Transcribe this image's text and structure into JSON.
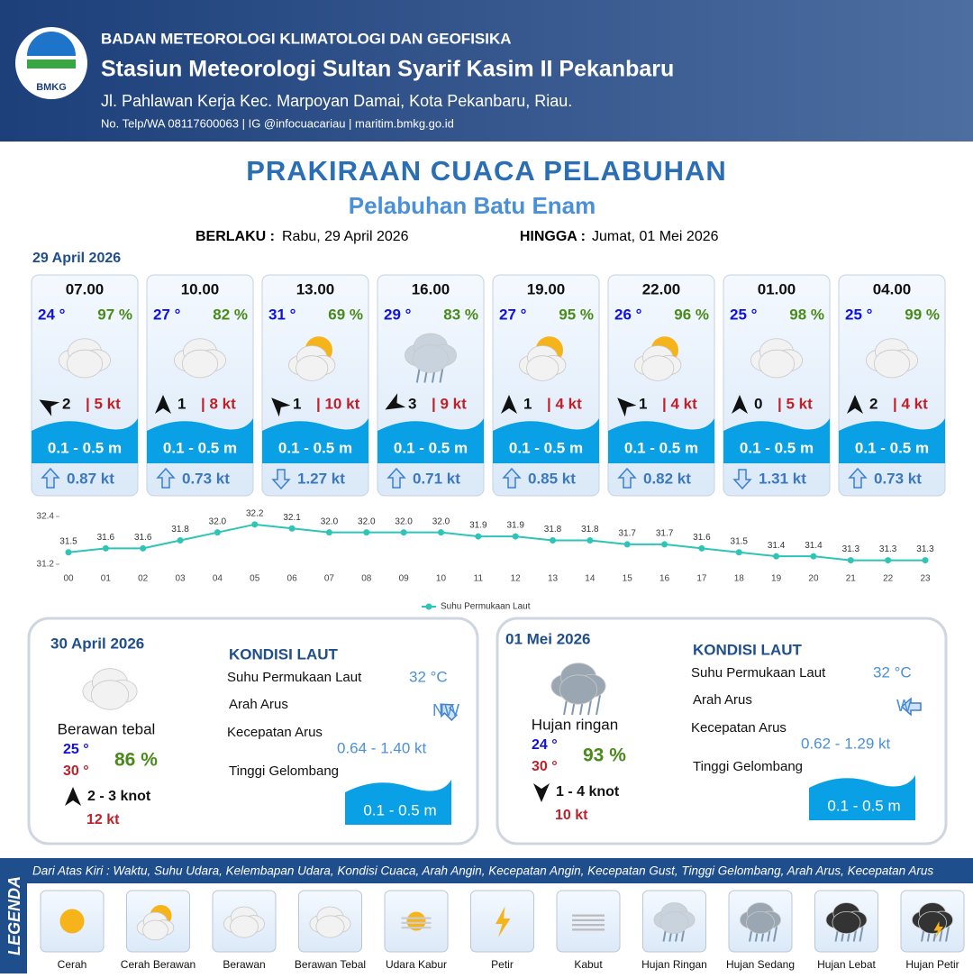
{
  "header": {
    "logo": "BMKG",
    "org": "BADAN METEOROLOGI KLIMATOLOGI DAN GEOFISIKA",
    "station": "Stasiun Meteorologi Sultan Syarif Kasim II Pekanbaru",
    "address": "Jl. Pahlawan Kerja Kec. Marpoyan Damai, Kota Pekanbaru, Riau.",
    "contact": "No. Telp/WA 08117600063 | IG @infocuacariau | maritim.bmkg.go.id"
  },
  "title": "PRAKIRAAN CUACA PELABUHAN",
  "subtitle": "Pelabuhan Batu Enam",
  "validity": {
    "from_label": "BERLAKU :",
    "from": "Rabu, 29 April 2026",
    "to_label": "HINGGA :",
    "to": "Jumat, 01 Mei 2026"
  },
  "day1": {
    "date": "29 April 2026",
    "cards": [
      {
        "time": "07.00",
        "temp": "24 °",
        "humidity": "97 %",
        "wind": "2",
        "gust": "| 5 kt",
        "wave": "0.1 - 0.5 m",
        "current": "0.87 kt"
      },
      {
        "time": "10.00",
        "temp": "27 °",
        "humidity": "82 %",
        "wind": "1",
        "gust": "| 8 kt",
        "wave": "0.1 - 0.5 m",
        "current": "0.73 kt"
      },
      {
        "time": "13.00",
        "temp": "31 °",
        "humidity": "69 %",
        "wind": "1",
        "gust": "| 10 kt",
        "wave": "0.1 - 0.5 m",
        "current": "1.27 kt"
      },
      {
        "time": "16.00",
        "temp": "29 °",
        "humidity": "83 %",
        "wind": "3",
        "gust": "| 9 kt",
        "wave": "0.1 - 0.5 m",
        "current": "0.71 kt"
      },
      {
        "time": "19.00",
        "temp": "27 °",
        "humidity": "95 %",
        "wind": "1",
        "gust": "| 4 kt",
        "wave": "0.1 - 0.5 m",
        "current": "0.85 kt"
      },
      {
        "time": "22.00",
        "temp": "26 °",
        "humidity": "96 %",
        "wind": "1",
        "gust": "| 4 kt",
        "wave": "0.1 - 0.5 m",
        "current": "0.82 kt"
      },
      {
        "time": "01.00",
        "temp": "25 °",
        "humidity": "98 %",
        "wind": "0",
        "gust": "| 5 kt",
        "wave": "0.1 - 0.5 m",
        "current": "1.31 kt"
      },
      {
        "time": "04.00",
        "temp": "25 °",
        "humidity": "99 %",
        "wind": "2",
        "gust": "| 4 kt",
        "wave": "0.1 - 0.5 m",
        "current": "0.73 kt"
      }
    ]
  },
  "chart_data": {
    "type": "line",
    "categories": [
      "00",
      "01",
      "02",
      "03",
      "04",
      "05",
      "06",
      "07",
      "08",
      "09",
      "10",
      "11",
      "12",
      "13",
      "14",
      "15",
      "16",
      "17",
      "18",
      "19",
      "20",
      "21",
      "22",
      "23"
    ],
    "series": [
      {
        "name": "Suhu Permukaan Laut",
        "color": "#2ec4b6",
        "values": [
          31.5,
          31.6,
          31.6,
          31.8,
          32.0,
          32.2,
          32.1,
          32.0,
          32.0,
          32.0,
          32.0,
          31.9,
          31.9,
          31.8,
          31.8,
          31.7,
          31.7,
          31.6,
          31.5,
          31.4,
          31.4,
          31.3,
          31.3,
          31.3
        ],
        "value_labels": [
          "31.5",
          "31.6",
          "31.6",
          "31.8",
          "32.0",
          "32.2",
          "32.1",
          "32.0",
          "32.0",
          "32.0",
          "32.0",
          "31.9",
          "31.9",
          "31.8",
          "31.8",
          "31.7",
          "31.7",
          "31.6",
          "31.5",
          "31.4",
          "31.4",
          "31.3",
          "31.3",
          "31.3"
        ]
      }
    ],
    "ylim": [
      31.2,
      32.4
    ],
    "yticks": [
      31.2,
      32.4
    ],
    "legend": "bottom"
  },
  "days": [
    {
      "date": "30 April 2026",
      "condition": "Berawan tebal",
      "tmin": "25 °",
      "tmax": "30 °",
      "humidity": "86 %",
      "wind": "2  - 3 knot",
      "gust": "12 kt",
      "sea_title": "KONDISI LAUT",
      "sst_label": "Suhu Permukaan Laut",
      "sst": "32 °C",
      "dir_label": "Arah Arus",
      "dir": "NW",
      "speed_label": "Kecepatan Arus",
      "speed": "0.64  - 1.40 kt",
      "wave_label": "Tinggi Gelombang",
      "wave": "0.1 - 0.5 m"
    },
    {
      "date": "01 Mei 2026",
      "condition": "Hujan ringan",
      "tmin": "24 °",
      "tmax": "30 °",
      "humidity": "93 %",
      "wind": "1  - 4 knot",
      "gust": "10 kt",
      "sea_title": "KONDISI LAUT",
      "sst_label": "Suhu Permukaan Laut",
      "sst": "32 °C",
      "dir_label": "Arah Arus",
      "dir": "W",
      "speed_label": "Kecepatan Arus",
      "speed": "0.62  - 1.29 kt",
      "wave_label": "Tinggi Gelombang",
      "wave": "0.1 - 0.5 m"
    }
  ],
  "legend": {
    "title": "LEGENDA",
    "caption": "Dari Atas Kiri : Waktu, Suhu Udara, Kelembapan Udara, Kondisi Cuaca, Arah Angin, Kecepatan Angin, Kecepatan Gust, Tinggi Gelombang, Arah Arus, Kecepatan Arus",
    "items": [
      "Cerah",
      "Cerah Berawan",
      "Berawan",
      "Berawan Tebal",
      "Udara Kabur",
      "Petir",
      "Kabut",
      "Hujan Ringan",
      "Hujan Sedang",
      "Hujan Lebat",
      "Hujan Petir"
    ]
  }
}
